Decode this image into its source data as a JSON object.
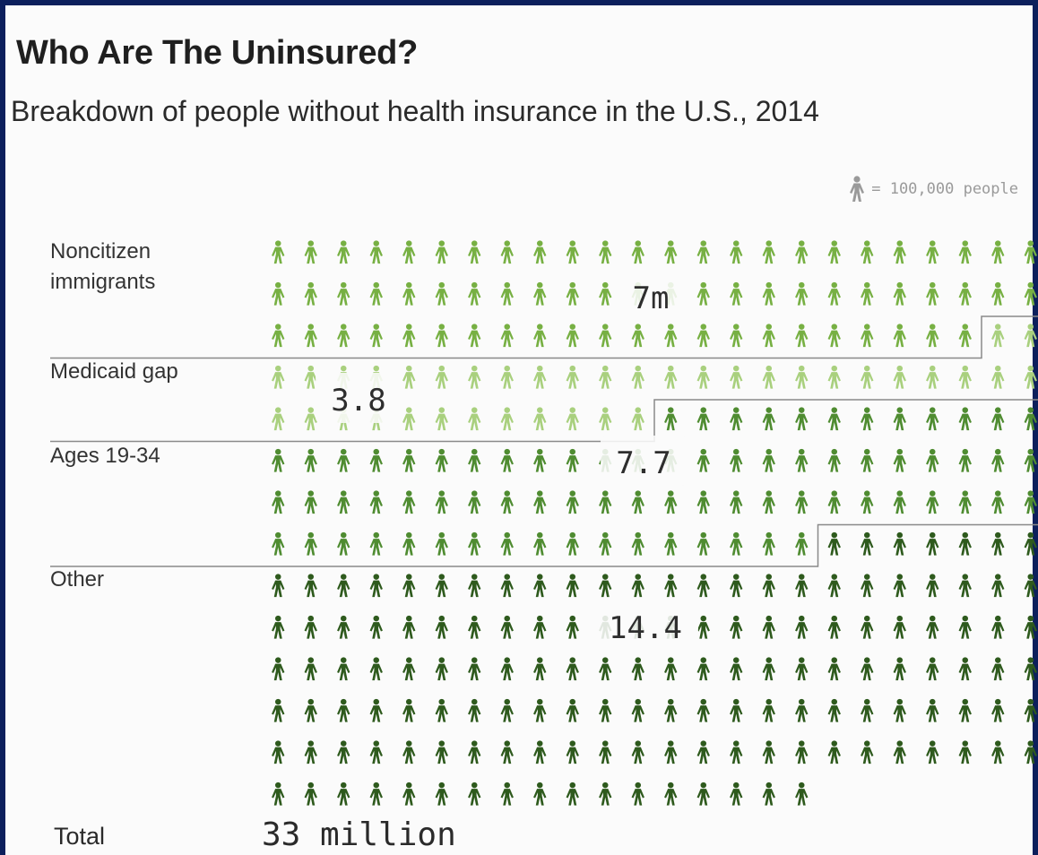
{
  "title": "Who Are The Uninsured?",
  "subtitle": "Breakdown of people without health insurance in the U.S., 2014",
  "legend": {
    "icon": "person-icon",
    "text": "= 100,000 people"
  },
  "total": {
    "label": "Total",
    "value": "33 million"
  },
  "colors": {
    "Noncitizen immigrants": "#77b043",
    "Medicaid gap": "#a9d07e",
    "Ages 19-34": "#4f8c31",
    "Other": "#2e5a1d",
    "divider": "#8a8a8a",
    "legend_icon": "#9a9a9a"
  },
  "chart_data": {
    "type": "pictograph",
    "unit": "100,000 people per icon",
    "categories": [
      "Noncitizen immigrants",
      "Medicaid gap",
      "Ages 19-34",
      "Other"
    ],
    "values": [
      7,
      3.8,
      7.7,
      14.4
    ],
    "value_labels": [
      "7m",
      "3.8",
      "7.7",
      "14.4"
    ],
    "total": 33
  }
}
